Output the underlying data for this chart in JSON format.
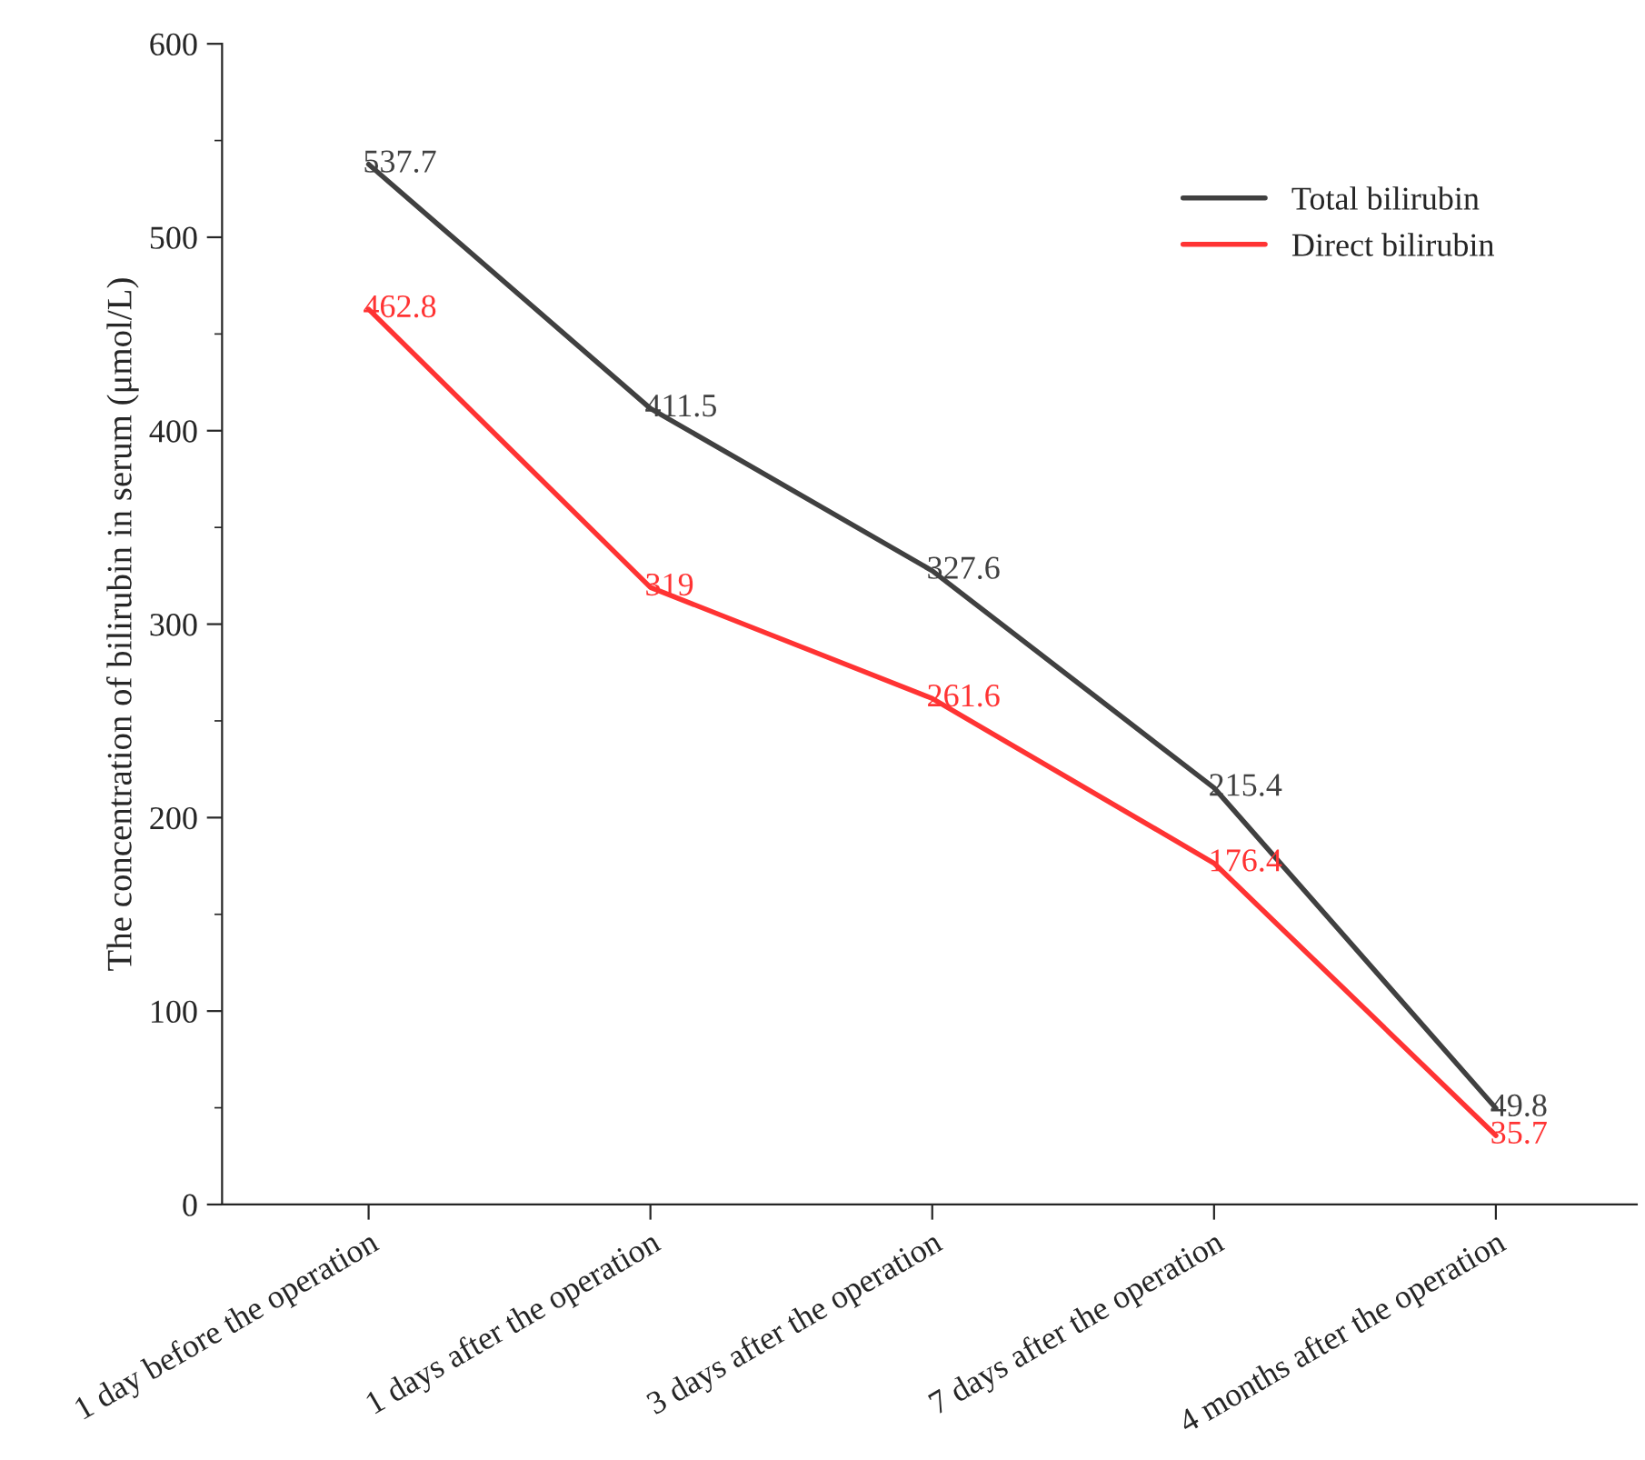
{
  "chart_data": {
    "type": "line",
    "ylabel": "The concentration of bilirubin in serum (μmol/L)",
    "categories": [
      "1 day before the operation",
      "1 days after the operation",
      "3 days after the operation",
      "7 days after the operation",
      "4 months after the operation"
    ],
    "series": [
      {
        "name": "Total bilirubin",
        "color": "#404040",
        "values": [
          537.7,
          411.5,
          327.6,
          215.4,
          49.8
        ]
      },
      {
        "name": "Direct bilirubin",
        "color": "#ff3333",
        "values": [
          462.8,
          319,
          261.6,
          176.4,
          35.7
        ]
      }
    ],
    "ylim": [
      0,
      600
    ],
    "yticks": [
      0,
      100,
      200,
      300,
      400,
      500,
      600
    ],
    "data_labels": true,
    "legend": "top right",
    "grid": false,
    "marker": "none",
    "line_style": "solid"
  }
}
